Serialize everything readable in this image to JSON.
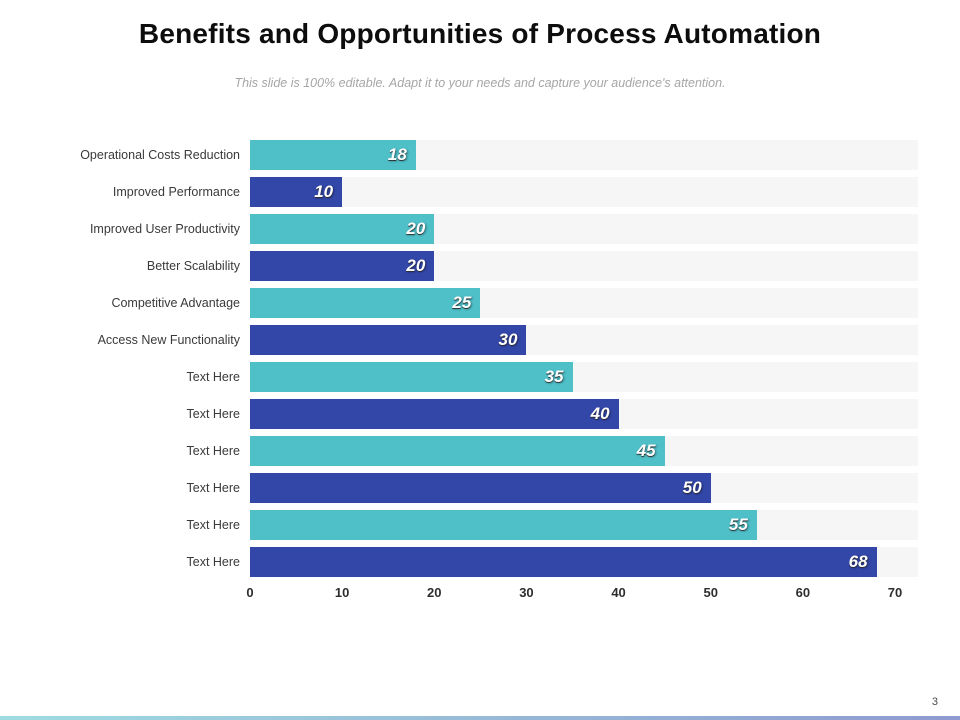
{
  "slide": {
    "title": "Benefits and Opportunities of Process Automation",
    "subtitle": "This slide is 100% editable. Adapt it to your needs and capture your audience's attention.",
    "page_number": "3"
  },
  "colors": {
    "accent_teal": "#4FBFC8",
    "accent_blue": "#3347A9",
    "row_stripe": "#F6F6F7"
  },
  "chart_data": {
    "type": "bar",
    "orientation": "horizontal",
    "title": "",
    "xlabel": "",
    "ylabel": "",
    "categories": [
      "Operational Costs Reduction",
      "Improved Performance",
      "Improved User Productivity",
      "Better Scalability",
      "Competitive Advantage",
      "Access New Functionality",
      "Text Here",
      "Text Here",
      "Text Here",
      "Text Here",
      "Text Here",
      "Text Here"
    ],
    "values": [
      18,
      10,
      20,
      20,
      25,
      30,
      35,
      40,
      45,
      50,
      55,
      68
    ],
    "bar_colors_alternate": [
      "#4FBFC8",
      "#3347A9"
    ],
    "xlim": [
      0,
      70
    ],
    "x_ticks": [
      0,
      10,
      20,
      30,
      40,
      50,
      60,
      70
    ],
    "grid": false,
    "legend": "none",
    "value_labels": "inside-end"
  }
}
